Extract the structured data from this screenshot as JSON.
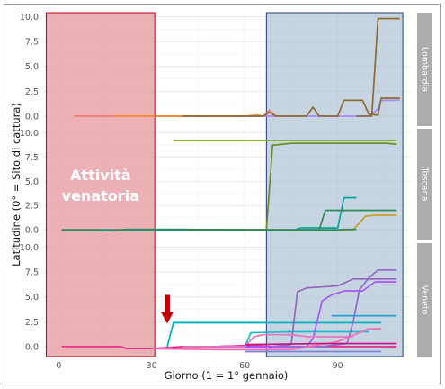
{
  "chart_data": {
    "type": "line",
    "xlabel": "Giorno (1 = 1° gennaio)",
    "ylabel": "Latitudine (0° = Sito di cattura)",
    "xlim": [
      -5,
      113
    ],
    "x_ticks": [
      0,
      30,
      60,
      90
    ],
    "ylim": [
      -1,
      10.4
    ],
    "y_ticks": [
      "0.0",
      "2.5",
      "5.0",
      "7.5",
      "10.0"
    ],
    "grid": true,
    "facet_strip_position": "right",
    "colors": {
      "hunting_fill": "#e8a3aa",
      "hunting_border": "#c00000",
      "migration_fill": "#a9bdd3",
      "migration_border": "#1f3d7a",
      "strip_bg": "#acacac",
      "arrow": "#c00000"
    },
    "highlight_periods": [
      {
        "label": "Attività venatoria",
        "x_start": -4,
        "x_end": 31
      },
      {
        "label": "",
        "x_start": 67,
        "x_end": 111
      }
    ],
    "arrow_annotation": {
      "x": 35,
      "y_from": 5.2,
      "y_to": 2.3
    },
    "facets": [
      {
        "name": "Lombardia",
        "series": [
          {
            "color": "#f8766d",
            "points": [
              [
                5,
                0
              ],
              [
                30,
                0
              ],
              [
                62,
                0
              ],
              [
                66,
                0
              ],
              [
                68,
                0.6
              ],
              [
                70,
                0
              ],
              [
                76,
                0
              ],
              [
                78,
                0
              ]
            ]
          },
          {
            "color": "#fd8a2b",
            "points": [
              [
                18,
                0
              ],
              [
                50,
                0
              ],
              [
                60,
                0
              ],
              [
                64,
                0.1
              ],
              [
                66,
                0
              ],
              [
                80,
                0
              ]
            ]
          },
          {
            "color": "#a58aff",
            "points": [
              [
                60,
                0
              ],
              [
                100,
                0
              ],
              [
                103,
                0.7
              ],
              [
                104,
                1.6
              ],
              [
                110,
                1.6
              ]
            ]
          },
          {
            "color": "#8b6b2e",
            "points": [
              [
                40,
                0
              ],
              [
                62,
                0
              ],
              [
                66,
                0
              ],
              [
                68,
                0.4
              ],
              [
                70,
                0
              ],
              [
                80,
                0
              ],
              [
                82,
                0.9
              ],
              [
                84,
                0
              ],
              [
                90,
                0
              ],
              [
                92,
                1.6
              ],
              [
                98,
                1.6
              ],
              [
                100,
                0.2
              ],
              [
                103,
                0.1
              ],
              [
                104,
                1.8
              ],
              [
                110,
                1.8
              ]
            ]
          },
          {
            "color": "#8b6b2e",
            "points": [
              [
                96,
                0
              ],
              [
                101,
                0
              ],
              [
                103,
                9.8
              ],
              [
                110,
                9.8
              ]
            ]
          }
        ]
      },
      {
        "name": "Toscana",
        "series": [
          {
            "color": "#7cae00",
            "points": [
              [
                37,
                9.2
              ],
              [
                104,
                9.2
              ],
              [
                109,
                9.2
              ]
            ]
          },
          {
            "color": "#6b8e23",
            "points": [
              [
                1,
                0
              ],
              [
                40,
                0
              ],
              [
                67,
                0
              ],
              [
                69,
                8.7
              ],
              [
                75,
                8.9
              ],
              [
                106,
                8.9
              ],
              [
                109,
                8.8
              ]
            ]
          },
          {
            "color": "#00a5a0",
            "points": [
              [
                1,
                0
              ],
              [
                50,
                0
              ],
              [
                70,
                0
              ],
              [
                76,
                0
              ],
              [
                78,
                0.2
              ],
              [
                90,
                0.2
              ],
              [
                92,
                3.3
              ],
              [
                96,
                3.3
              ]
            ]
          },
          {
            "color": "#2e8b57",
            "points": [
              [
                1,
                0
              ],
              [
                12,
                0
              ],
              [
                14,
                -0.1
              ],
              [
                22,
                0.05
              ],
              [
                40,
                0.05
              ],
              [
                60,
                0
              ],
              [
                76,
                0
              ],
              [
                84,
                0
              ],
              [
                86,
                2
              ],
              [
                109,
                2
              ]
            ]
          },
          {
            "color": "#c8a01e",
            "points": [
              [
                60,
                0
              ],
              [
                95,
                0
              ],
              [
                99,
                1.4
              ],
              [
                102,
                1.5
              ],
              [
                109,
                1.5
              ]
            ]
          },
          {
            "color": "#2e8b57",
            "points": [
              [
                40,
                0
              ],
              [
                80,
                0
              ],
              [
                90,
                0
              ],
              [
                92,
                0.05
              ],
              [
                96,
                0.05
              ]
            ]
          }
        ]
      },
      {
        "name": "Veneto",
        "series": [
          {
            "color": "#e7298a",
            "points": [
              [
                1,
                0
              ],
              [
                20,
                0
              ],
              [
                22,
                -0.2
              ],
              [
                30,
                -0.2
              ],
              [
                40,
                0
              ],
              [
                50,
                0
              ],
              [
                60,
                0.1
              ],
              [
                70,
                0
              ],
              [
                109,
                0
              ]
            ]
          },
          {
            "color": "#00b4c8",
            "points": [
              [
                35,
                0
              ],
              [
                37,
                2.4
              ],
              [
                40,
                2.4
              ],
              [
                60,
                2.4
              ],
              [
                104,
                2.4
              ]
            ]
          },
          {
            "color": "#17becf",
            "points": [
              [
                50,
                0
              ],
              [
                60,
                0
              ],
              [
                62,
                1.4
              ],
              [
                75,
                1.5
              ],
              [
                80,
                1.5
              ],
              [
                100,
                1.5
              ]
            ]
          },
          {
            "color": "#9467bd",
            "points": [
              [
                40,
                0
              ],
              [
                60,
                0
              ],
              [
                69,
                0
              ],
              [
                75,
                0.2
              ],
              [
                77,
                5.5
              ],
              [
                80,
                5.9
              ],
              [
                90,
                6.1
              ],
              [
                95,
                6.8
              ],
              [
                109,
                6.8
              ]
            ]
          },
          {
            "color": "#a855f7",
            "points": [
              [
                60,
                0
              ],
              [
                80,
                0
              ],
              [
                82,
                0.8
              ],
              [
                85,
                4.6
              ],
              [
                88,
                5.2
              ],
              [
                92,
                5.6
              ],
              [
                98,
                5.6
              ],
              [
                102,
                6.5
              ],
              [
                109,
                6.5
              ]
            ]
          },
          {
            "color": "#8e6bcf",
            "points": [
              [
                70,
                0
              ],
              [
                85,
                0
              ],
              [
                93,
                0.3
              ],
              [
                95,
                2.5
              ],
              [
                97,
                5.7
              ],
              [
                100,
                6.9
              ],
              [
                103,
                7.7
              ],
              [
                109,
                7.7
              ]
            ]
          },
          {
            "color": "#e377c2",
            "points": [
              [
                40,
                0
              ],
              [
                60,
                0
              ],
              [
                63,
                1.0
              ],
              [
                66,
                1.2
              ],
              [
                70,
                1.2
              ],
              [
                74,
                1.2
              ],
              [
                78,
                1.1
              ],
              [
                80,
                1.0
              ],
              [
                95,
                1.0
              ]
            ]
          },
          {
            "color": "#ff69b4",
            "points": [
              [
                30,
                -0.2
              ],
              [
                50,
                -0.3
              ],
              [
                75,
                -0.3
              ],
              [
                90,
                0.5
              ],
              [
                100,
                1.8
              ],
              [
                104,
                1.8
              ]
            ]
          },
          {
            "color": "#1f9fd0",
            "points": [
              [
                88,
                3.1
              ],
              [
                92,
                3.1
              ],
              [
                109,
                3.1
              ]
            ]
          },
          {
            "color": "#c71585",
            "points": [
              [
                60,
                0.2
              ],
              [
                85,
                0.3
              ],
              [
                95,
                0.3
              ],
              [
                109,
                0.3
              ]
            ]
          },
          {
            "color": "#7f7fdd",
            "points": [
              [
                60,
                -0.5
              ],
              [
                75,
                -0.5
              ],
              [
                90,
                -0.5
              ],
              [
                100,
                -0.5
              ],
              [
                104,
                -0.5
              ]
            ]
          }
        ]
      }
    ]
  }
}
